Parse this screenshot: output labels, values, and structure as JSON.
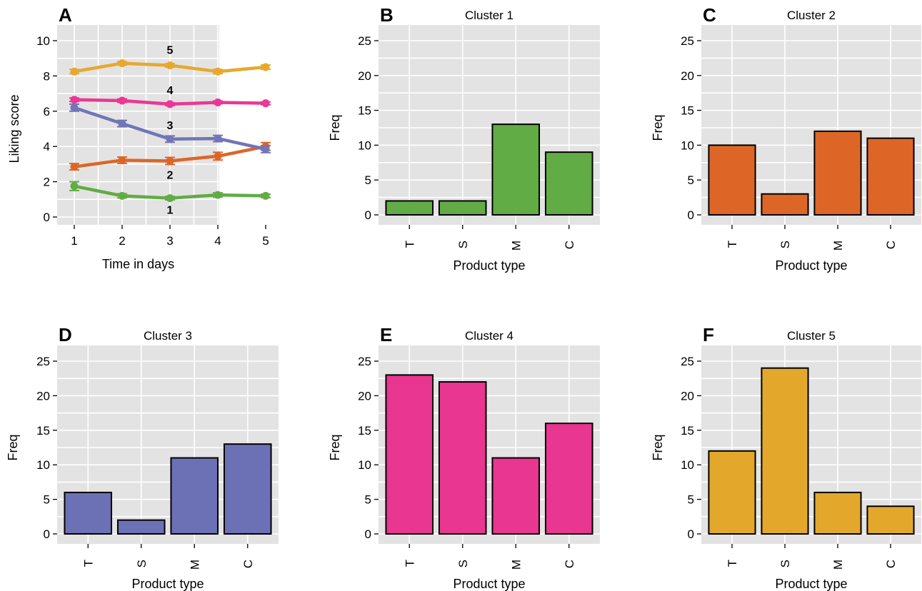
{
  "chart_data": [
    {
      "panel": "A",
      "type": "line",
      "title": "",
      "xlabel": "Time in days",
      "ylabel": "Liking score",
      "x": [
        1,
        2,
        3,
        4,
        5
      ],
      "xticks": [
        "1",
        "2",
        "3",
        "4",
        "5"
      ],
      "yticks": [
        "0",
        "2",
        "4",
        "6",
        "8",
        "10"
      ],
      "ylim": [
        0,
        10
      ],
      "grid": true,
      "series": [
        {
          "name": "1",
          "color": "#62ac45",
          "values": [
            1.75,
            1.2,
            1.07,
            1.25,
            1.2
          ],
          "errors": [
            0.25,
            0.12,
            0.1,
            0.12,
            0.1
          ]
        },
        {
          "name": "2",
          "color": "#dd6627",
          "values": [
            2.85,
            3.22,
            3.18,
            3.45,
            4.0
          ],
          "errors": [
            0.18,
            0.18,
            0.2,
            0.22,
            0.22
          ]
        },
        {
          "name": "3",
          "color": "#7275b6",
          "values": [
            6.2,
            5.3,
            4.42,
            4.45,
            3.85
          ],
          "errors": [
            0.2,
            0.18,
            0.18,
            0.18,
            0.2
          ]
        },
        {
          "name": "4",
          "color": "#e93895",
          "values": [
            6.65,
            6.6,
            6.4,
            6.5,
            6.45
          ],
          "errors": [
            0.1,
            0.1,
            0.08,
            0.08,
            0.08
          ]
        },
        {
          "name": "5",
          "color": "#e6a92e",
          "values": [
            8.25,
            8.72,
            8.6,
            8.25,
            8.5
          ],
          "errors": [
            0.12,
            0.1,
            0.1,
            0.12,
            0.12
          ]
        }
      ]
    },
    {
      "panel": "B",
      "type": "bar",
      "title": "Cluster 1",
      "xlabel": "Product type",
      "ylabel": "Freq",
      "categories": [
        "T",
        "S",
        "M",
        "C"
      ],
      "values": [
        2,
        2,
        13,
        9
      ],
      "color": "#62ac45",
      "ylim": [
        0,
        25
      ],
      "yticks": [
        "0",
        "5",
        "10",
        "15",
        "20",
        "25"
      ],
      "grid": true
    },
    {
      "panel": "C",
      "type": "bar",
      "title": "Cluster 2",
      "xlabel": "Product type",
      "ylabel": "Freq",
      "categories": [
        "T",
        "S",
        "M",
        "C"
      ],
      "values": [
        10,
        3,
        12,
        11
      ],
      "color": "#dd6627",
      "ylim": [
        0,
        25
      ],
      "yticks": [
        "0",
        "5",
        "10",
        "15",
        "20",
        "25"
      ],
      "grid": true
    },
    {
      "panel": "D",
      "type": "bar",
      "title": "Cluster 3",
      "xlabel": "Product type",
      "ylabel": "Freq",
      "categories": [
        "T",
        "S",
        "M",
        "C"
      ],
      "values": [
        6,
        2,
        11,
        13
      ],
      "color": "#6c70b5",
      "ylim": [
        0,
        25
      ],
      "yticks": [
        "0",
        "5",
        "10",
        "15",
        "20",
        "25"
      ],
      "grid": true
    },
    {
      "panel": "E",
      "type": "bar",
      "title": "Cluster 4",
      "xlabel": "Product type",
      "ylabel": "Freq",
      "categories": [
        "T",
        "S",
        "M",
        "C"
      ],
      "values": [
        23,
        22,
        11,
        16
      ],
      "color": "#e93690",
      "ylim": [
        0,
        25
      ],
      "yticks": [
        "0",
        "5",
        "10",
        "15",
        "20",
        "25"
      ],
      "grid": true
    },
    {
      "panel": "F",
      "type": "bar",
      "title": "Cluster 5",
      "xlabel": "Product type",
      "ylabel": "Freq",
      "categories": [
        "T",
        "S",
        "M",
        "C"
      ],
      "values": [
        12,
        24,
        6,
        4
      ],
      "color": "#e3a82b",
      "ylim": [
        0,
        25
      ],
      "yticks": [
        "0",
        "5",
        "10",
        "15",
        "20",
        "25"
      ],
      "grid": true
    }
  ]
}
